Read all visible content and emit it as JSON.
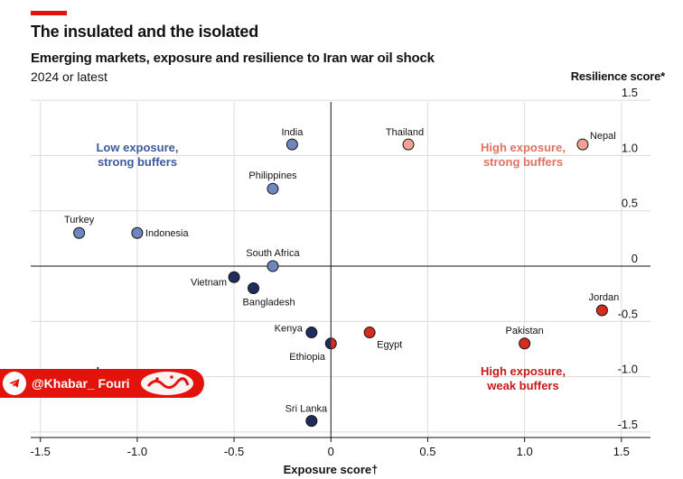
{
  "header": {
    "title": "The insulated and the isolated",
    "subtitle": "Emerging markets, exposure and resilience to Iran war oil shock",
    "note": "2024 or latest"
  },
  "watermark": {
    "handle": "@Khabar_ Fouri"
  },
  "colors": {
    "navy": "#1f2d5c",
    "steel": "#6f87bf",
    "salmon": "#f4a093",
    "red": "#d62b1f",
    "blue_text": "#3d5a9e",
    "salmon_text": "#e2725f",
    "red_text": "#c8191a",
    "accent": "#e3120b"
  },
  "chart_data": {
    "type": "scatter",
    "xlabel": "Exposure score†",
    "ylabel": "Resilience score*",
    "xlim": [
      -1.55,
      1.65
    ],
    "ylim": [
      -1.55,
      1.55
    ],
    "xticks": [
      "-1.5",
      "-1.0",
      "-0.5",
      "0",
      "0.5",
      "1.0",
      "1.5"
    ],
    "xtick_values": [
      -1.5,
      -1.0,
      -0.5,
      0,
      0.5,
      1.0,
      1.5
    ],
    "yticks": [
      "1.5",
      "1.0",
      "0.5",
      "0",
      "-0.5",
      "-1.0",
      "-1.5"
    ],
    "ytick_values": [
      1.5,
      1.0,
      0.5,
      0,
      -0.5,
      -1.0,
      -1.5
    ],
    "grid": true,
    "points": [
      {
        "name": "India",
        "x": -0.2,
        "y": 1.1,
        "group": "steel"
      },
      {
        "name": "Thailand",
        "x": 0.4,
        "y": 1.1,
        "group": "salmon"
      },
      {
        "name": "Nepal",
        "x": 1.3,
        "y": 1.1,
        "group": "salmon"
      },
      {
        "name": "Philippines",
        "x": -0.3,
        "y": 0.7,
        "group": "steel"
      },
      {
        "name": "Turkey",
        "x": -1.3,
        "y": 0.3,
        "group": "steel"
      },
      {
        "name": "Indonesia",
        "x": -1.0,
        "y": 0.3,
        "group": "steel"
      },
      {
        "name": "South Africa",
        "x": -0.3,
        "y": 0.0,
        "group": "steel"
      },
      {
        "name": "Vietnam",
        "x": -0.5,
        "y": -0.1,
        "group": "navy"
      },
      {
        "name": "Bangladesh",
        "x": -0.4,
        "y": -0.2,
        "group": "navy"
      },
      {
        "name": "Jordan",
        "x": 1.4,
        "y": -0.4,
        "group": "red"
      },
      {
        "name": "Kenya",
        "x": -0.1,
        "y": -0.6,
        "group": "navy"
      },
      {
        "name": "Egypt",
        "x": 0.2,
        "y": -0.6,
        "group": "red"
      },
      {
        "name": "Ethiopia",
        "x": 0.0,
        "y": -0.7,
        "group": "split"
      },
      {
        "name": "Pakistan",
        "x": 1.0,
        "y": -0.7,
        "group": "red"
      },
      {
        "name": "Sri Lanka",
        "x": -0.1,
        "y": -1.4,
        "group": "navy"
      }
    ],
    "quadrant_labels": [
      {
        "lines": [
          "Low exposure,",
          "strong buffers"
        ],
        "group": "blue"
      },
      {
        "lines": [
          "High exposure,",
          "strong buffers"
        ],
        "group": "salmon"
      },
      {
        "lines": [
          "Low exposure,",
          "weak buffers"
        ],
        "group": "navy"
      },
      {
        "lines": [
          "High exposure,",
          "weak buffers"
        ],
        "group": "red"
      }
    ]
  }
}
